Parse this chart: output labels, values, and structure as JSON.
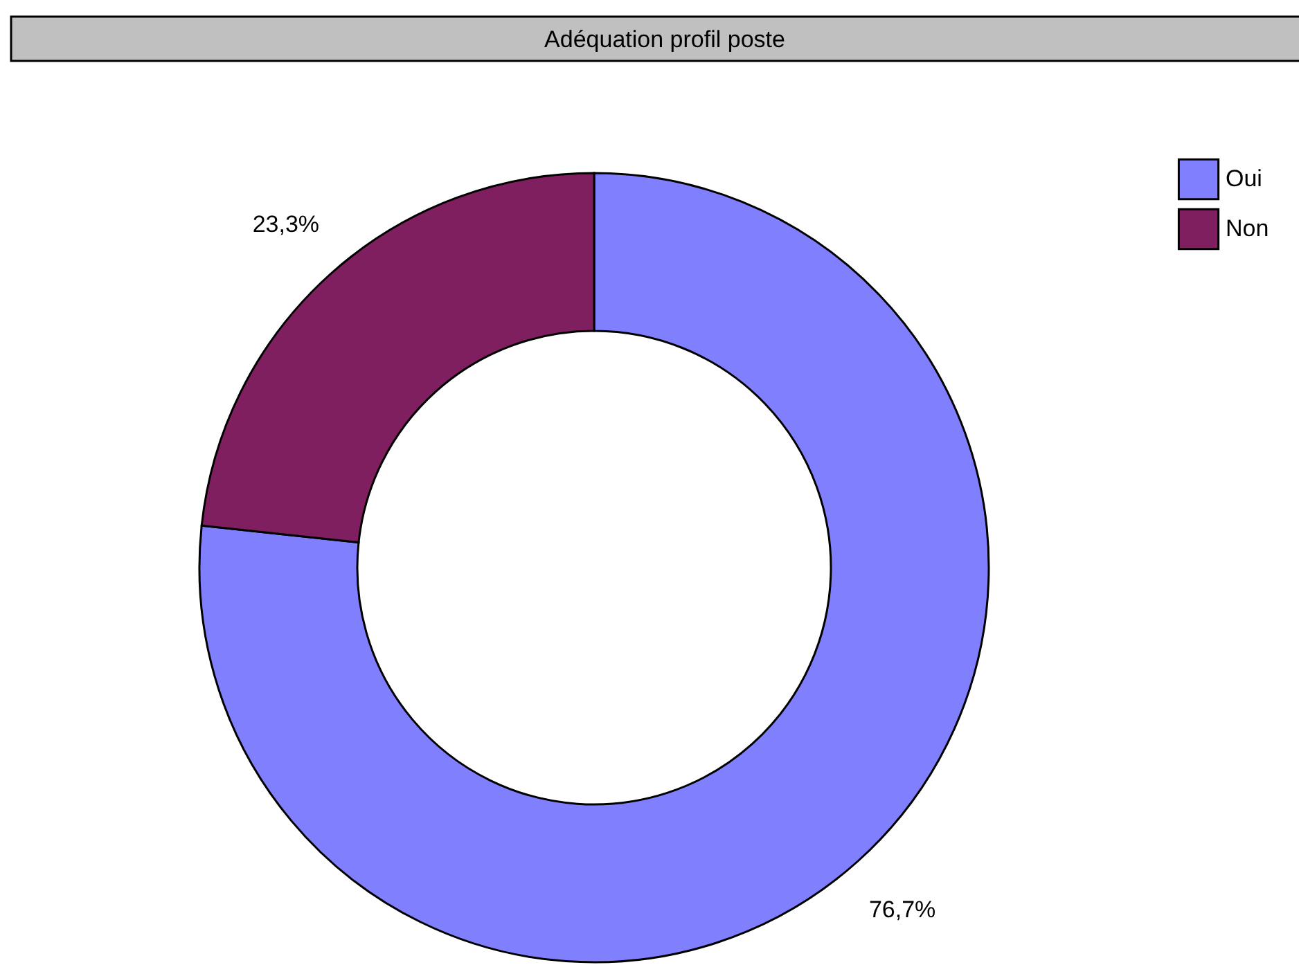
{
  "chart_data": {
    "type": "donut",
    "title": "Adéquation profil poste",
    "categories": [
      "Oui",
      "Non"
    ],
    "values": [
      76.7,
      23.3
    ],
    "colors": [
      "#8080ff",
      "#7f1f5f"
    ],
    "value_labels": [
      "76,7%",
      "23,3%"
    ],
    "legend": "top right"
  }
}
